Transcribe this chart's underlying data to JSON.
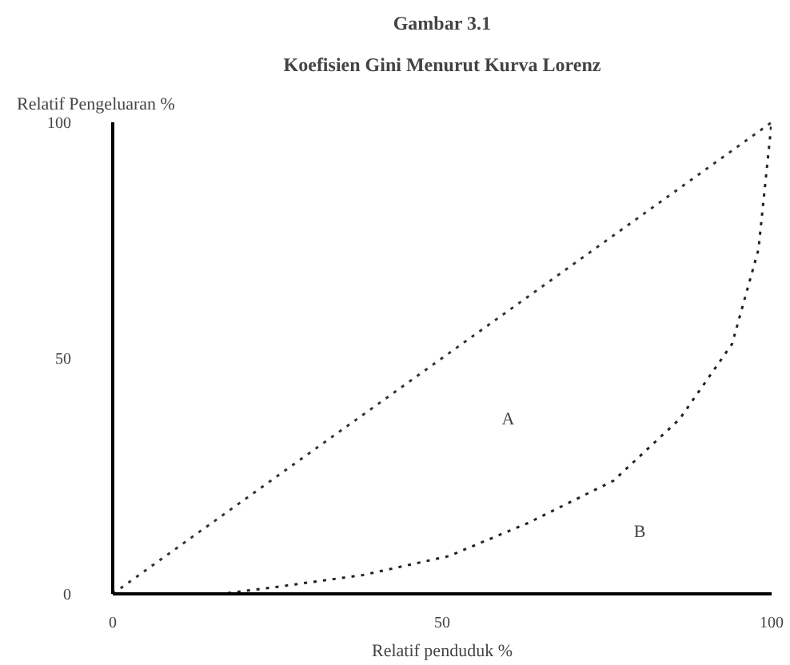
{
  "chart_data": {
    "type": "line",
    "title": "Gambar 3.1",
    "subtitle": "Koefisien Gini Menurut Kurva Lorenz",
    "xlabel": "Relatif penduduk %",
    "ylabel": "Relatif Pengeluaran %",
    "xlim": [
      0,
      100
    ],
    "ylim": [
      0,
      100
    ],
    "xticks": [
      0,
      50,
      100
    ],
    "yticks": [
      0,
      50,
      100
    ],
    "grid": false,
    "line_style": "dotted",
    "series": [
      {
        "color": "#333333",
        "x": [
          0,
          100
        ],
        "values": [
          0,
          100
        ]
      },
      {
        "color": "#222222",
        "x": [
          0,
          16.5,
          25,
          38,
          51,
          63,
          76,
          86,
          94,
          98,
          100
        ],
        "values": [
          0,
          0,
          1.5,
          4,
          8,
          15,
          24,
          37,
          53,
          73,
          100
        ]
      }
    ],
    "annotations": [
      "A",
      "B"
    ]
  }
}
